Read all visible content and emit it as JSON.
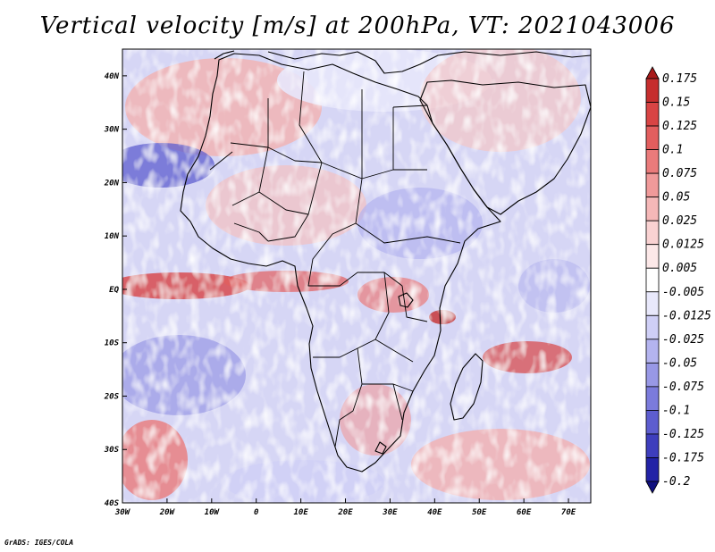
{
  "title": "Vertical velocity [m/s] at 200hPa, VT: 2021043006",
  "credit": "GrADS: IGES/COLA",
  "map": {
    "lon_range": [
      -30,
      75
    ],
    "lat_range": [
      -40,
      45
    ],
    "x_ticks": [
      {
        "lon": -30,
        "label": "30W"
      },
      {
        "lon": -20,
        "label": "20W"
      },
      {
        "lon": -10,
        "label": "10W"
      },
      {
        "lon": 0,
        "label": "0"
      },
      {
        "lon": 10,
        "label": "10E"
      },
      {
        "lon": 20,
        "label": "20E"
      },
      {
        "lon": 30,
        "label": "30E"
      },
      {
        "lon": 40,
        "label": "40E"
      },
      {
        "lon": 50,
        "label": "50E"
      },
      {
        "lon": 60,
        "label": "60E"
      },
      {
        "lon": 70,
        "label": "70E"
      }
    ],
    "y_ticks": [
      {
        "lat": 40,
        "label": "40N"
      },
      {
        "lat": 30,
        "label": "30N"
      },
      {
        "lat": 20,
        "label": "20N"
      },
      {
        "lat": 10,
        "label": "10N"
      },
      {
        "lat": 0,
        "label": "EQ"
      },
      {
        "lat": -10,
        "label": "10S"
      },
      {
        "lat": -20,
        "label": "20S"
      },
      {
        "lat": -30,
        "label": "30S"
      },
      {
        "lat": -40,
        "label": "40S"
      }
    ]
  },
  "colorbar": {
    "levels": [
      "0.175",
      "0.15",
      "0.125",
      "0.1",
      "0.075",
      "0.05",
      "0.025",
      "0.0125",
      "0.005",
      "-0.005",
      "-0.0125",
      "-0.025",
      "-0.05",
      "-0.075",
      "-0.1",
      "-0.125",
      "-0.175",
      "-0.2"
    ],
    "colors": [
      "#a81a1a",
      "#c62e2e",
      "#d84444",
      "#e25e5e",
      "#ea7b7b",
      "#f09a9a",
      "#f5b8b8",
      "#f9d2d2",
      "#fce8e8",
      "#ffffff",
      "#e8e8fb",
      "#cfcff6",
      "#b4b4ef",
      "#9898e6",
      "#7b7bdc",
      "#5d5dcf",
      "#3e3ebd",
      "#2222a6",
      "#10107f"
    ]
  }
}
